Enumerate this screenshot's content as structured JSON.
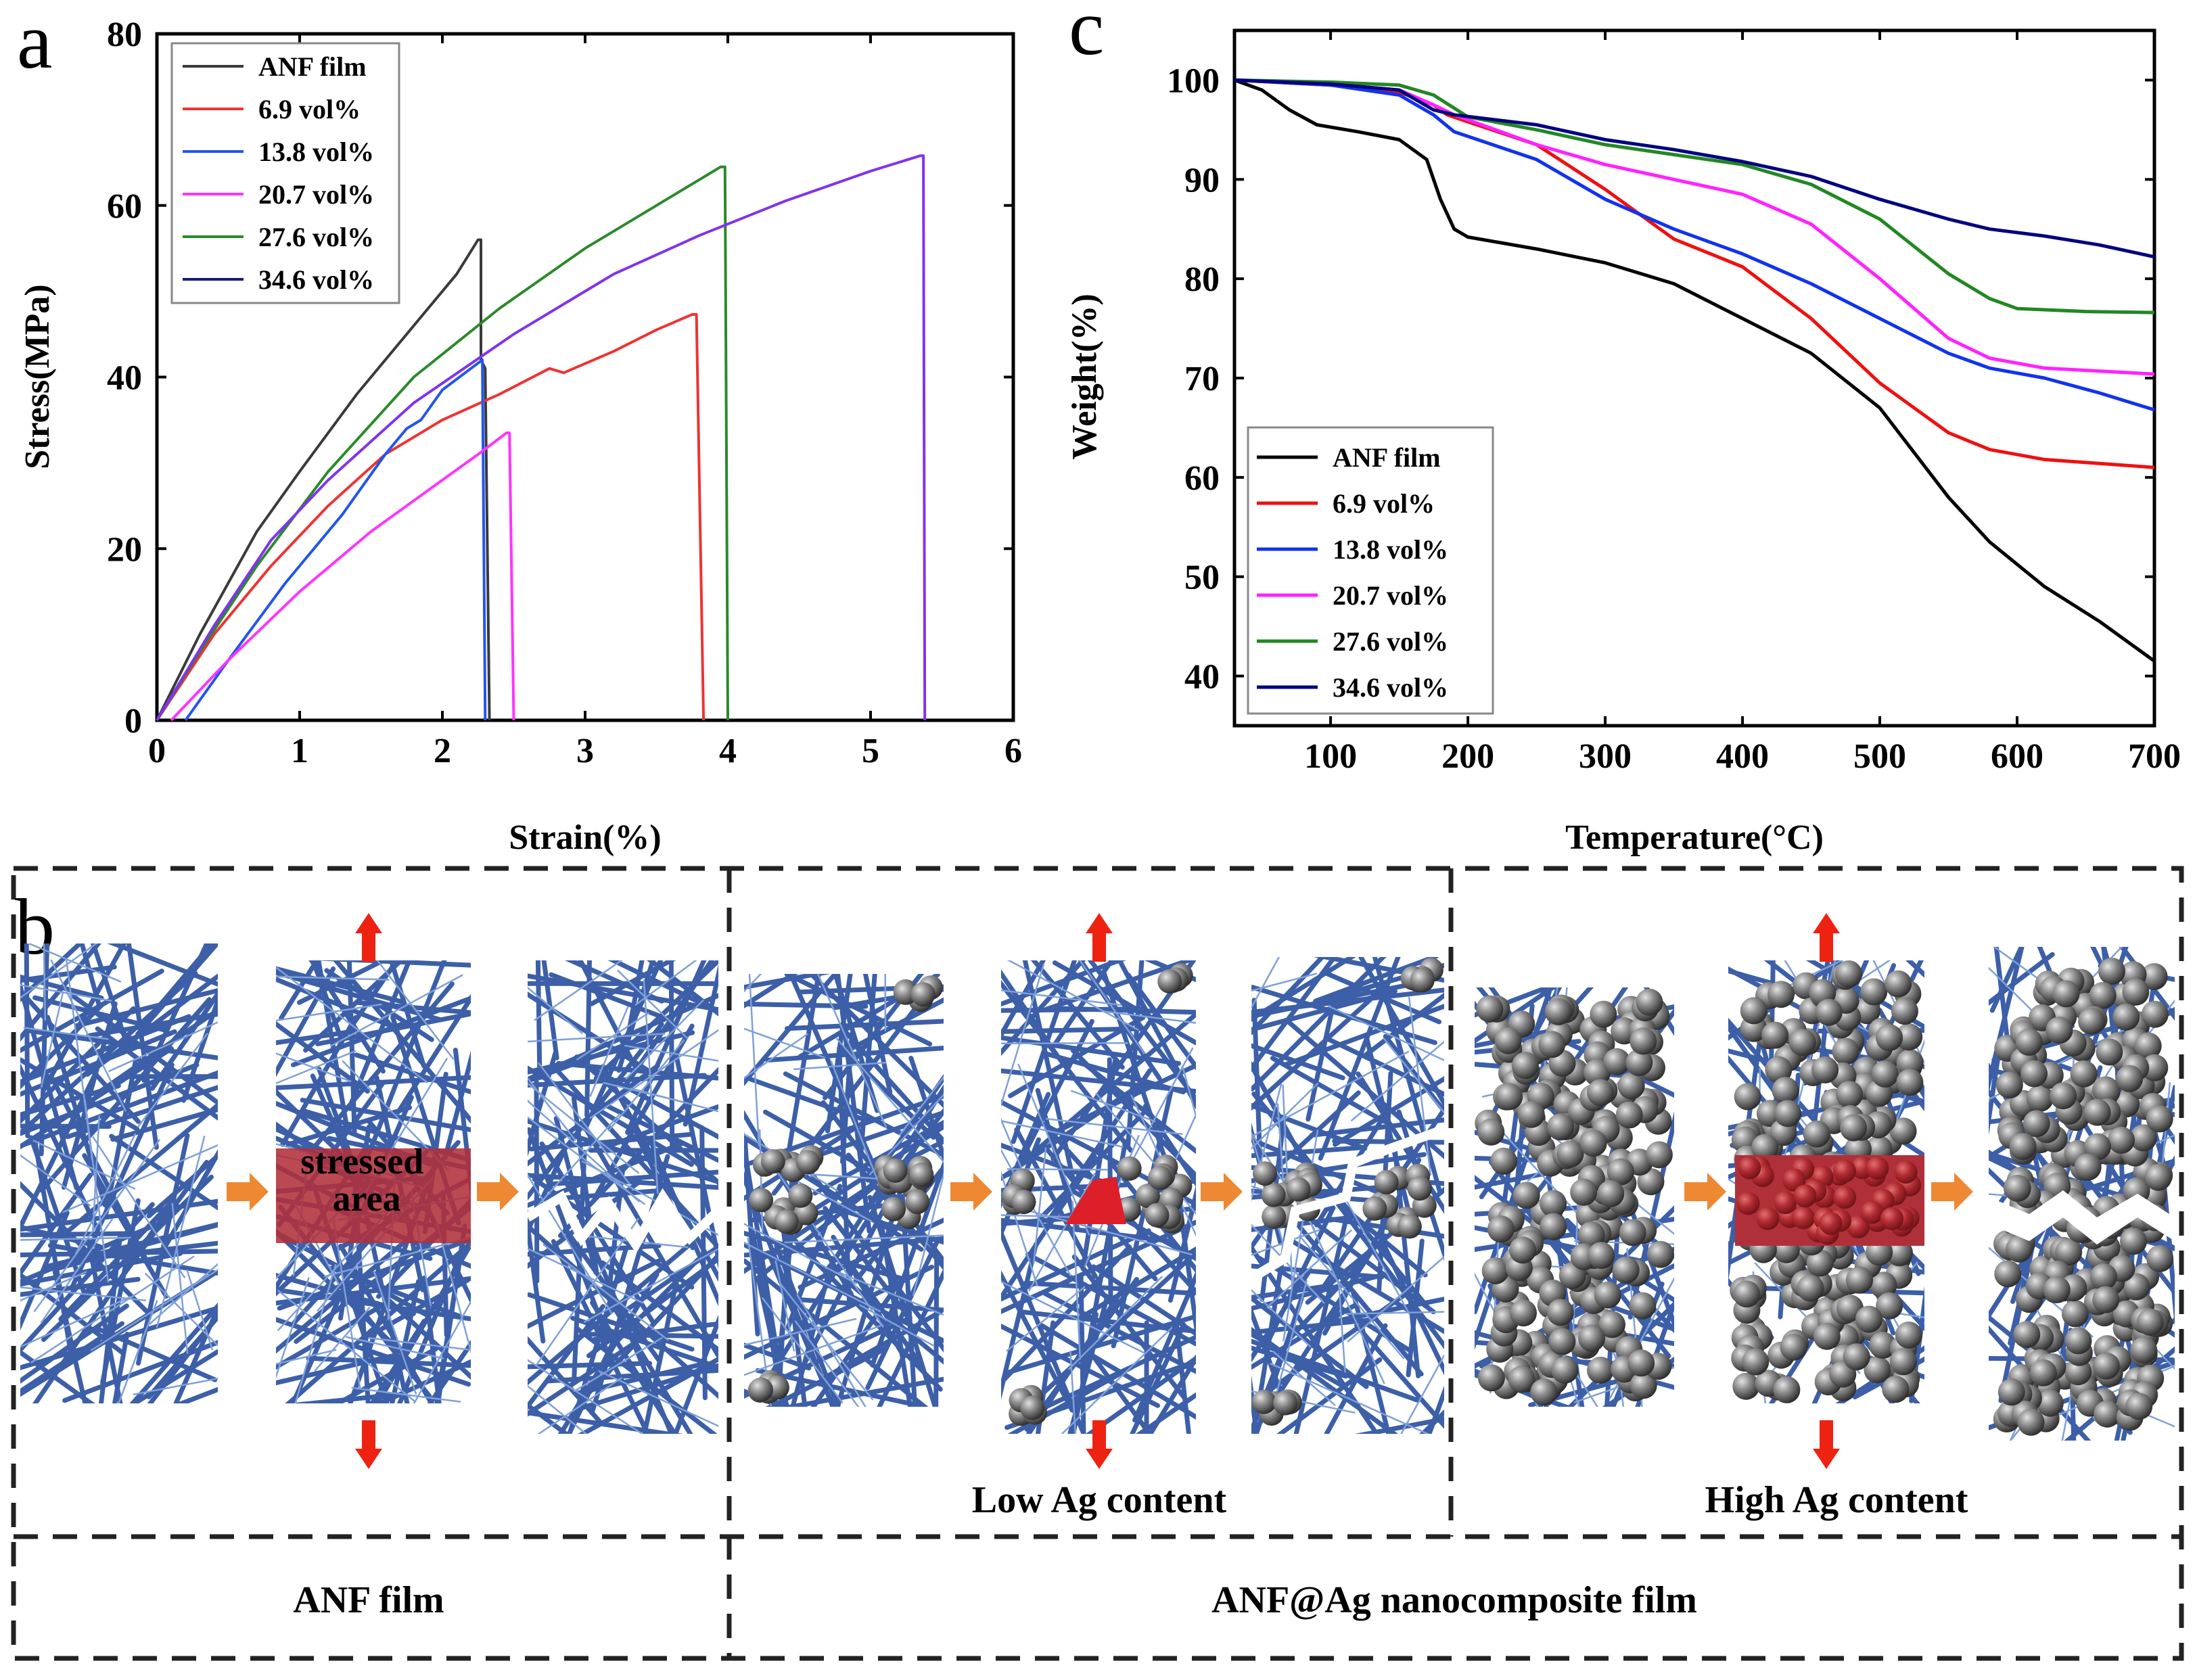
{
  "panel_labels": {
    "a": "a",
    "b": "b",
    "c": "c"
  },
  "chart_data": [
    {
      "id": "a",
      "type": "line",
      "title": "",
      "xlabel": "Strain(%)",
      "ylabel": "Stress(MPa)",
      "xlim": [
        0,
        6
      ],
      "ylim": [
        0,
        80
      ],
      "xticks": [
        "0",
        "1",
        "2",
        "3",
        "4",
        "5",
        "6"
      ],
      "yticks": [
        "0",
        "20",
        "40",
        "60",
        "80"
      ],
      "legend_position": "top-left",
      "series": [
        {
          "name": "ANF film",
          "color": "#3a3a3a",
          "points": [
            [
              0,
              0
            ],
            [
              0.3,
              10
            ],
            [
              0.7,
              22
            ],
            [
              1.0,
              29
            ],
            [
              1.4,
              38
            ],
            [
              1.8,
              46
            ],
            [
              2.1,
              52
            ],
            [
              2.25,
              56
            ],
            [
              2.27,
              56
            ],
            [
              2.27,
              42
            ],
            [
              2.3,
              41
            ],
            [
              2.33,
              0
            ]
          ]
        },
        {
          "name": "6.9 vol%",
          "color": "#ee3333",
          "points": [
            [
              0,
              0
            ],
            [
              0.4,
              10
            ],
            [
              0.8,
              18
            ],
            [
              1.2,
              25
            ],
            [
              1.6,
              31
            ],
            [
              2.0,
              35
            ],
            [
              2.4,
              38
            ],
            [
              2.75,
              41
            ],
            [
              2.85,
              40.5
            ],
            [
              3.2,
              43
            ],
            [
              3.5,
              45.5
            ],
            [
              3.75,
              47.3
            ],
            [
              3.78,
              47.3
            ],
            [
              3.83,
              0
            ]
          ]
        },
        {
          "name": "13.8 vol%",
          "color": "#2255ee",
          "points": [
            [
              0.2,
              0
            ],
            [
              0.5,
              7
            ],
            [
              0.9,
              16
            ],
            [
              1.3,
              24
            ],
            [
              1.6,
              31
            ],
            [
              1.75,
              34
            ],
            [
              1.85,
              35
            ],
            [
              2.0,
              38.5
            ],
            [
              2.2,
              41
            ],
            [
              2.28,
              42
            ],
            [
              2.3,
              0
            ]
          ]
        },
        {
          "name": "20.7 vol%",
          "color": "#ff33ff",
          "points": [
            [
              0.1,
              0
            ],
            [
              0.5,
              7
            ],
            [
              1.0,
              15
            ],
            [
              1.5,
              22
            ],
            [
              2.0,
              28
            ],
            [
              2.25,
              31
            ],
            [
              2.45,
              33.5
            ],
            [
              2.47,
              33.5
            ],
            [
              2.5,
              0
            ]
          ]
        },
        {
          "name": "27.6 vol%",
          "color": "#2a8a2a",
          "points": [
            [
              0,
              0
            ],
            [
              0.3,
              8
            ],
            [
              0.7,
              18
            ],
            [
              1.2,
              29
            ],
            [
              1.8,
              40
            ],
            [
              2.4,
              48
            ],
            [
              3.0,
              55
            ],
            [
              3.5,
              60
            ],
            [
              3.95,
              64.5
            ],
            [
              3.98,
              64.5
            ],
            [
              4.0,
              0
            ]
          ]
        },
        {
          "name": "34.6 vol%",
          "color": "#8033ee",
          "points": [
            [
              0,
              0
            ],
            [
              0.4,
              11
            ],
            [
              0.8,
              21
            ],
            [
              1.2,
              28
            ],
            [
              1.8,
              37
            ],
            [
              2.5,
              45
            ],
            [
              3.2,
              52
            ],
            [
              3.8,
              56.5
            ],
            [
              4.4,
              60.5
            ],
            [
              5.0,
              64
            ],
            [
              5.35,
              65.8
            ],
            [
              5.37,
              65.8
            ],
            [
              5.38,
              0
            ]
          ]
        }
      ],
      "legend_entries": [
        {
          "name": "ANF film",
          "color": "#3a3a3a"
        },
        {
          "name": "6.9 vol%",
          "color": "#ee3333"
        },
        {
          "name": "13.8 vol%",
          "color": "#2255ee"
        },
        {
          "name": "20.7 vol%",
          "color": "#ff33ff"
        },
        {
          "name": "27.6 vol%",
          "color": "#2a8a2a"
        },
        {
          "name": "34.6 vol%",
          "color": "#1a1a80"
        }
      ]
    },
    {
      "id": "c",
      "type": "line",
      "title": "",
      "xlabel": "Temperature(°C)",
      "ylabel": "Weight(%)",
      "xlim": [
        30,
        700
      ],
      "ylim": [
        35,
        105
      ],
      "xticks": [
        "100",
        "200",
        "300",
        "400",
        "500",
        "600",
        "700"
      ],
      "yticks": [
        "40",
        "50",
        "60",
        "70",
        "80",
        "90",
        "100"
      ],
      "legend_position": "bottom-left",
      "series": [
        {
          "name": "ANF film",
          "color": "#000000",
          "points": [
            [
              30,
              100
            ],
            [
              50,
              99
            ],
            [
              70,
              97
            ],
            [
              90,
              95.5
            ],
            [
              120,
              94.8
            ],
            [
              150,
              94
            ],
            [
              170,
              92
            ],
            [
              180,
              88
            ],
            [
              190,
              85
            ],
            [
              200,
              84.2
            ],
            [
              250,
              83
            ],
            [
              300,
              81.6
            ],
            [
              350,
              79.5
            ],
            [
              400,
              76
            ],
            [
              450,
              72.5
            ],
            [
              500,
              67
            ],
            [
              550,
              58
            ],
            [
              580,
              53.5
            ],
            [
              620,
              49
            ],
            [
              660,
              45.5
            ],
            [
              700,
              41.5
            ]
          ]
        },
        {
          "name": "6.9 vol%",
          "color": "#ee1111",
          "points": [
            [
              30,
              100
            ],
            [
              100,
              99.5
            ],
            [
              150,
              98.8
            ],
            [
              175,
              97.5
            ],
            [
              185,
              96.5
            ],
            [
              200,
              95.8
            ],
            [
              250,
              93.5
            ],
            [
              300,
              89
            ],
            [
              350,
              84
            ],
            [
              400,
              81.2
            ],
            [
              450,
              76
            ],
            [
              500,
              69.5
            ],
            [
              550,
              64.5
            ],
            [
              580,
              62.8
            ],
            [
              620,
              61.8
            ],
            [
              700,
              61
            ]
          ]
        },
        {
          "name": "13.8 vol%",
          "color": "#1133ee",
          "points": [
            [
              30,
              100
            ],
            [
              100,
              99.5
            ],
            [
              150,
              98.5
            ],
            [
              175,
              96.5
            ],
            [
              190,
              94.8
            ],
            [
              250,
              92
            ],
            [
              300,
              88
            ],
            [
              350,
              85
            ],
            [
              400,
              82.5
            ],
            [
              450,
              79.5
            ],
            [
              500,
              76
            ],
            [
              550,
              72.5
            ],
            [
              580,
              71
            ],
            [
              620,
              70
            ],
            [
              660,
              68.5
            ],
            [
              700,
              66.8
            ]
          ]
        },
        {
          "name": "20.7 vol%",
          "color": "#ff22ff",
          "points": [
            [
              30,
              100
            ],
            [
              100,
              99.6
            ],
            [
              150,
              99
            ],
            [
              175,
              97.5
            ],
            [
              190,
              96.5
            ],
            [
              250,
              93.5
            ],
            [
              300,
              91.5
            ],
            [
              350,
              90
            ],
            [
              400,
              88.5
            ],
            [
              450,
              85.5
            ],
            [
              500,
              80
            ],
            [
              550,
              74
            ],
            [
              580,
              72
            ],
            [
              620,
              71
            ],
            [
              700,
              70.4
            ]
          ]
        },
        {
          "name": "27.6 vol%",
          "color": "#228822",
          "points": [
            [
              30,
              100
            ],
            [
              100,
              99.8
            ],
            [
              150,
              99.5
            ],
            [
              175,
              98.5
            ],
            [
              200,
              96.3
            ],
            [
              250,
              95
            ],
            [
              300,
              93.5
            ],
            [
              350,
              92.5
            ],
            [
              400,
              91.5
            ],
            [
              450,
              89.5
            ],
            [
              500,
              86
            ],
            [
              550,
              80.5
            ],
            [
              580,
              78
            ],
            [
              600,
              77
            ],
            [
              650,
              76.7
            ],
            [
              700,
              76.6
            ]
          ]
        },
        {
          "name": "34.6 vol%",
          "color": "#000080",
          "points": [
            [
              30,
              100
            ],
            [
              100,
              99.6
            ],
            [
              150,
              99
            ],
            [
              175,
              97
            ],
            [
              190,
              96.5
            ],
            [
              250,
              95.5
            ],
            [
              300,
              94
            ],
            [
              350,
              93
            ],
            [
              400,
              91.8
            ],
            [
              450,
              90.3
            ],
            [
              500,
              88
            ],
            [
              550,
              86
            ],
            [
              580,
              85
            ],
            [
              620,
              84.3
            ],
            [
              660,
              83.4
            ],
            [
              700,
              82.2
            ]
          ]
        }
      ]
    }
  ],
  "schematic": {
    "stressed_area_label": "stressed area",
    "low_ag_label": "Low Ag content",
    "high_ag_label": "High Ag content",
    "anf_film_label": "ANF film",
    "nanocomposite_label": "ANF@Ag nanocomposite film",
    "fiber_color": "#3c5fa8",
    "particle_color": "#7d7d7d",
    "stress_color": "#b0303a",
    "arrow_color": "#ee2211",
    "step_arrow_color": "#ee8833"
  }
}
